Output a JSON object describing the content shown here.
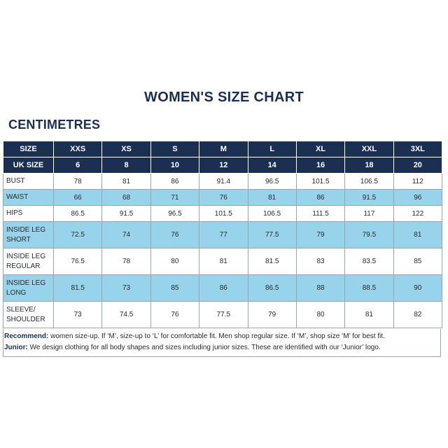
{
  "title": "WOMEN'S SIZE CHART",
  "unit_heading": "CENTIMETRES",
  "header_rows": [
    {
      "label": "SIZE",
      "cells": [
        "XXS",
        "XS",
        "S",
        "M",
        "L",
        "XL",
        "XXL",
        "3XL"
      ]
    },
    {
      "label": "UK SIZE",
      "cells": [
        "6",
        "8",
        "10",
        "12",
        "14",
        "16",
        "18",
        "20"
      ]
    }
  ],
  "body_rows": [
    {
      "label_lines": [
        "BUST"
      ],
      "cells": [
        "78",
        "81",
        "86",
        "91.4",
        "96.5",
        "101.5",
        "106.5",
        "112"
      ],
      "style": "white",
      "tall": false
    },
    {
      "label_lines": [
        "WAIST"
      ],
      "cells": [
        "66",
        "68",
        "71",
        "76",
        "81",
        "86",
        "91.5",
        "96"
      ],
      "style": "blue",
      "tall": false
    },
    {
      "label_lines": [
        "HIPS"
      ],
      "cells": [
        "86.5",
        "91.5",
        "96.5",
        "101.5",
        "106.5",
        "111.5",
        "117",
        "122"
      ],
      "style": "white",
      "tall": false
    },
    {
      "label_lines": [
        "INSIDE LEG",
        "SHORT"
      ],
      "cells": [
        "72.5",
        "74",
        "76",
        "77",
        "77.5",
        "79",
        "79.5",
        "81"
      ],
      "style": "blue",
      "tall": true
    },
    {
      "label_lines": [
        "INSIDE LEG",
        "REGULAR"
      ],
      "cells": [
        "76.5",
        "78",
        "80",
        "81",
        "81.5",
        "83",
        "83.5",
        "85"
      ],
      "style": "white",
      "tall": true
    },
    {
      "label_lines": [
        "INSIDE LEG",
        "LONG"
      ],
      "cells": [
        "81.5",
        "73",
        "85",
        "86",
        "86.5",
        "88",
        "88.5",
        "90"
      ],
      "style": "blue",
      "tall": true
    },
    {
      "label_lines": [
        "SLEEVE/",
        "SHOULDER"
      ],
      "cells": [
        "73",
        "74.5",
        "76",
        "77.5",
        "79",
        "80",
        "81",
        "82"
      ],
      "style": "white",
      "tall": true
    }
  ],
  "notes": {
    "recommend_label": "Recommend:",
    "recommend_text": " women size-up. If ‘M’, size-up to ‘L’ for comfortable fit. Men shop regular size. If ‘M’, shop size ‘M’ for best fit.",
    "junior_label": "Junior:",
    "junior_text": " We design clothing for all body shapes and sizes including junior sizes. These are identified with our ‘Junior’ logo."
  },
  "colors": {
    "header_bg": "#1b2f52",
    "highlight_row": "#97d3ea",
    "title": "#1b2f52"
  }
}
